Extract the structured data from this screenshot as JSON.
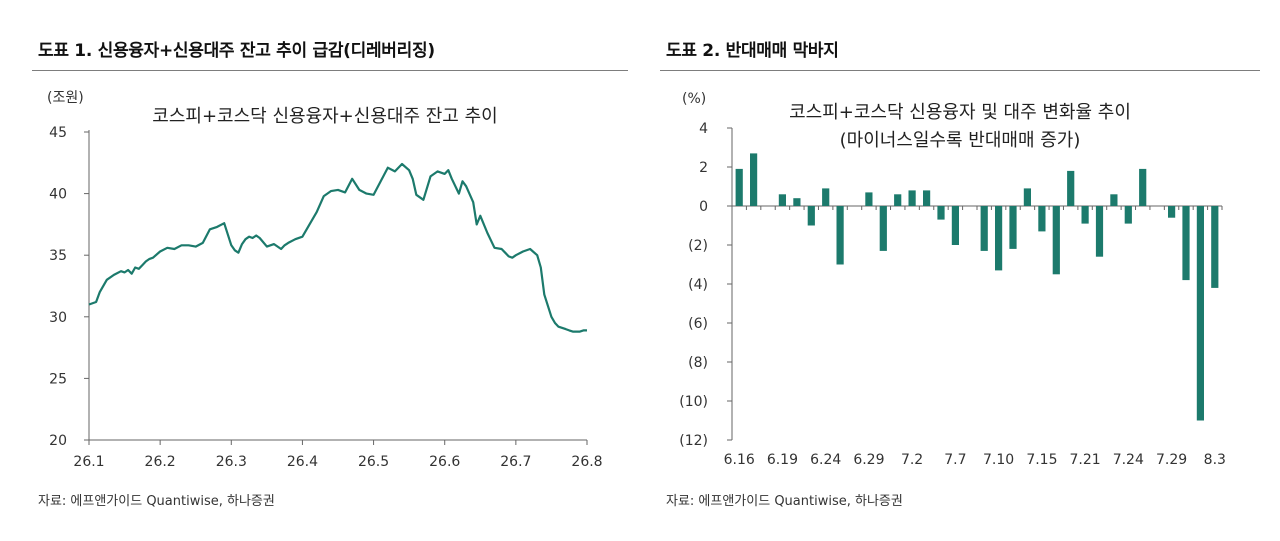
{
  "figures": [
    {
      "title": "도표 1. 신용융자+신용대주 잔고 추이 급감(디레버리징)",
      "source": "자료: 에프앤가이드 Quantiwise, 하나증권"
    },
    {
      "title": "도표 2. 반대매매 막바지",
      "source": "자료: 에프앤가이드 Quantiwise, 하나증권"
    }
  ],
  "chart_data": [
    {
      "type": "line",
      "title": "코스피+코스닥 신용융자+신용대주 잔고 추이",
      "unit_label": "(조원)",
      "ylim": [
        20,
        45
      ],
      "yticks": [
        "45",
        "40",
        "35",
        "30",
        "25",
        "20"
      ],
      "xlim": [
        0,
        7
      ],
      "xticks": [
        "26.1",
        "26.2",
        "26.3",
        "26.4",
        "26.5",
        "26.6",
        "26.7",
        "26.8"
      ],
      "grid": false,
      "color": "#1c7a6c",
      "series": [
        {
          "x": [
            0.0,
            0.1,
            0.15,
            0.25,
            0.35,
            0.45,
            0.5,
            0.55,
            0.6,
            0.65,
            0.7,
            0.75,
            0.8,
            0.85,
            0.9,
            1.0,
            1.1,
            1.2,
            1.3,
            1.4,
            1.5,
            1.6,
            1.7,
            1.8,
            1.9,
            2.0,
            2.05,
            2.1,
            2.15,
            2.2,
            2.25,
            2.3,
            2.35,
            2.4,
            2.5,
            2.6,
            2.7,
            2.75,
            2.8,
            2.9,
            3.0,
            3.1,
            3.2,
            3.3,
            3.4,
            3.5,
            3.6,
            3.7,
            3.8,
            3.9,
            4.0,
            4.1,
            4.2,
            4.3,
            4.4,
            4.5,
            4.55,
            4.6,
            4.7,
            4.8,
            4.9,
            5.0,
            5.05,
            5.1,
            5.2,
            5.25,
            5.3,
            5.4,
            5.45,
            5.5,
            5.6,
            5.7,
            5.8,
            5.85,
            5.9,
            5.95,
            6.0,
            6.1,
            6.2,
            6.3,
            6.35,
            6.4,
            6.5,
            6.55,
            6.6,
            6.7,
            6.75,
            6.8,
            6.85,
            6.9,
            6.95,
            7.0
          ],
          "y": [
            31.0,
            31.2,
            32.0,
            33.0,
            33.4,
            33.7,
            33.6,
            33.8,
            33.5,
            34.0,
            33.9,
            34.2,
            34.5,
            34.7,
            34.8,
            35.3,
            35.6,
            35.5,
            35.8,
            35.8,
            35.7,
            36.0,
            37.1,
            37.3,
            37.6,
            35.8,
            35.4,
            35.2,
            35.9,
            36.3,
            36.5,
            36.4,
            36.6,
            36.4,
            35.7,
            35.9,
            35.5,
            35.8,
            36.0,
            36.3,
            36.5,
            37.5,
            38.5,
            39.8,
            40.2,
            40.3,
            40.1,
            41.2,
            40.3,
            40.0,
            39.9,
            41.0,
            42.1,
            41.8,
            42.4,
            41.9,
            41.2,
            39.9,
            39.5,
            41.4,
            41.8,
            41.6,
            41.9,
            41.2,
            40.0,
            41.0,
            40.6,
            39.3,
            37.5,
            38.2,
            36.8,
            35.6,
            35.5,
            35.2,
            34.9,
            34.8,
            35.0,
            35.3,
            35.5,
            35.0,
            34.0,
            31.8,
            30.0,
            29.5,
            29.2,
            29.0,
            28.9,
            28.8,
            28.8,
            28.8,
            28.9,
            28.9
          ]
        }
      ]
    },
    {
      "type": "bar",
      "title": "코스피+코스닥 신용융자 및 대주 변화율 추이",
      "subtitle": "(마이너스일수록 반대매매 증가)",
      "unit_label": "(%)",
      "ylim": [
        -12,
        4
      ],
      "yticks": [
        "4",
        "2",
        "0",
        "(2)",
        "(4)",
        "(6)",
        "(8)",
        "(10)",
        "(12)"
      ],
      "xticks": [
        "6.16",
        "6.19",
        "6.24",
        "6.29",
        "7.2",
        "7.7",
        "7.10",
        "7.15",
        "7.21",
        "7.24",
        "7.29",
        "8.3"
      ],
      "xtick_index": [
        0,
        3,
        6,
        9,
        12,
        15,
        18,
        21,
        24,
        27,
        30,
        33
      ],
      "grid": false,
      "color": "#1c7a6c",
      "values": [
        1.9,
        2.7,
        0.0,
        0.6,
        0.4,
        -1.0,
        0.9,
        -3.0,
        0.0,
        0.7,
        -2.3,
        0.6,
        0.8,
        0.8,
        -0.7,
        -2.0,
        0.0,
        -2.3,
        -3.3,
        -2.2,
        0.9,
        -1.3,
        -3.5,
        1.8,
        -0.9,
        -2.6,
        0.6,
        -0.9,
        1.9,
        0.0,
        -0.6,
        -3.8,
        -11.0,
        -4.2
      ]
    }
  ]
}
